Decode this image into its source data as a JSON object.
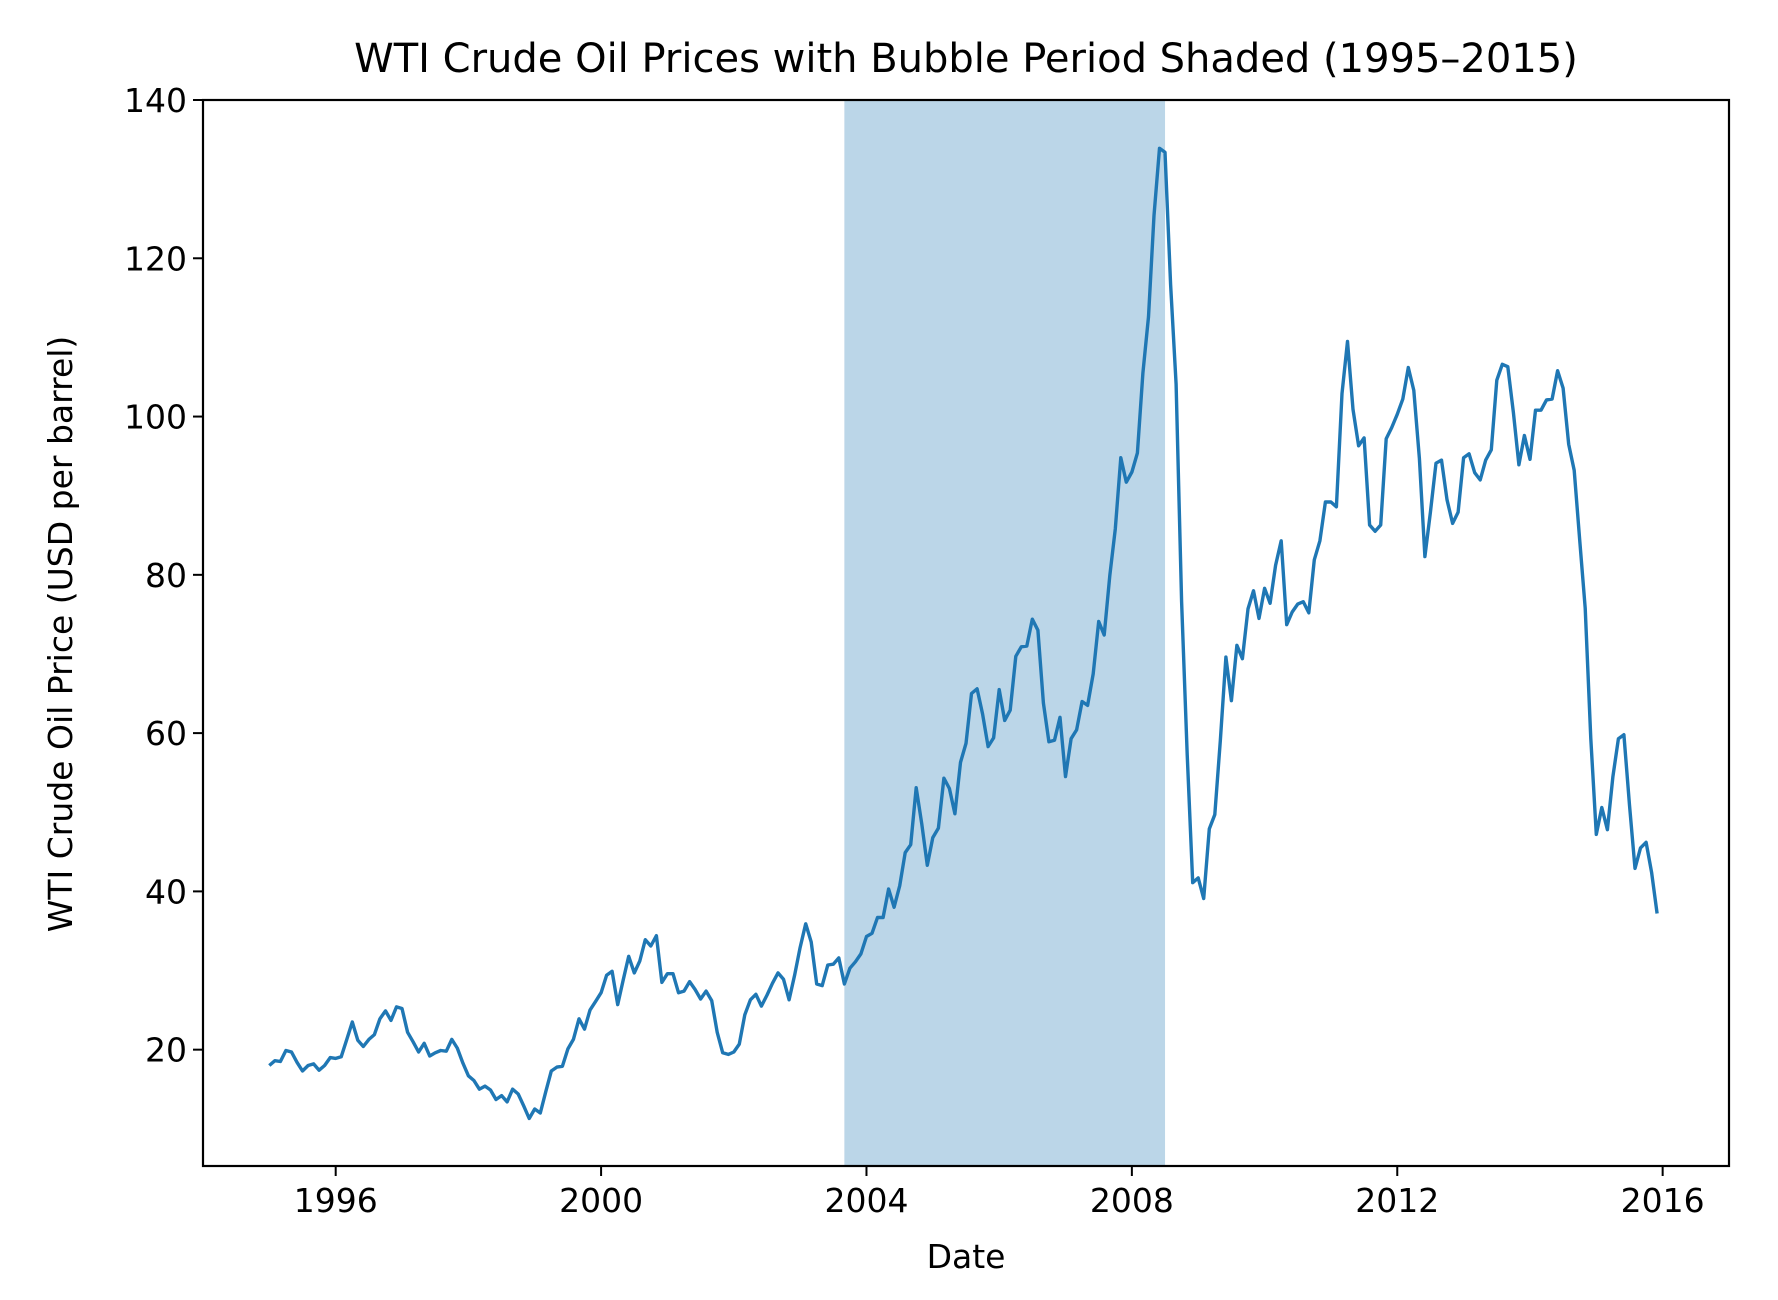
{
  "chart_data": {
    "type": "line",
    "title": "WTI Crude Oil Prices with Bubble Period Shaded (1995–2015)",
    "xlabel": "Date",
    "ylabel": "WTI Crude Oil Price (USD per barrel)",
    "xlim": [
      "1994-01",
      "2017-01"
    ],
    "ylim": [
      5.3,
      140
    ],
    "x_ticks": [
      "1996",
      "2000",
      "2004",
      "2008",
      "2012",
      "2016"
    ],
    "y_ticks": [
      20,
      40,
      60,
      80,
      100,
      120,
      140
    ],
    "grid": false,
    "line_color": "#1f77b4",
    "shaded_span": {
      "start": "2003-09",
      "end": "2008-07",
      "color": "#1f77b4",
      "opacity": 0.3
    },
    "monthly": [
      {
        "year": 1995,
        "values": [
          18.0,
          18.6,
          18.5,
          19.9,
          19.7,
          18.4,
          17.3,
          18.0,
          18.2,
          17.4,
          18.0,
          19.0
        ]
      },
      {
        "year": 1996,
        "values": [
          18.9,
          19.1,
          21.3,
          23.5,
          21.2,
          20.4,
          21.3,
          21.9,
          23.9,
          24.9,
          23.7,
          25.4
        ]
      },
      {
        "year": 1997,
        "values": [
          25.2,
          22.2,
          21.0,
          19.7,
          20.8,
          19.2,
          19.6,
          19.9,
          19.8,
          21.3,
          20.2,
          18.3
        ]
      },
      {
        "year": 1998,
        "values": [
          16.7,
          16.1,
          15.0,
          15.4,
          14.9,
          13.7,
          14.2,
          13.4,
          15.0,
          14.4,
          12.9,
          11.3
        ]
      },
      {
        "year": 1999,
        "values": [
          12.5,
          12.0,
          14.7,
          17.3,
          17.8,
          17.9,
          20.1,
          21.3,
          23.9,
          22.6,
          25.0,
          26.1
        ]
      },
      {
        "year": 2000,
        "values": [
          27.2,
          29.4,
          29.9,
          25.7,
          28.8,
          31.8,
          29.7,
          31.2,
          33.9,
          33.1,
          34.4,
          28.5
        ]
      },
      {
        "year": 2001,
        "values": [
          29.6,
          29.6,
          27.2,
          27.4,
          28.6,
          27.6,
          26.4,
          27.4,
          26.2,
          22.2,
          19.6,
          19.4
        ]
      },
      {
        "year": 2002,
        "values": [
          19.7,
          20.7,
          24.4,
          26.3,
          27.0,
          25.5,
          26.9,
          28.4,
          29.7,
          28.9,
          26.3,
          29.4
        ]
      },
      {
        "year": 2003,
        "values": [
          32.9,
          35.9,
          33.6,
          28.3,
          28.1,
          30.7,
          30.8,
          31.6,
          28.3,
          30.3,
          31.1,
          32.1
        ]
      },
      {
        "year": 2004,
        "values": [
          34.3,
          34.7,
          36.7,
          36.7,
          40.3,
          38.0,
          40.7,
          44.9,
          45.9,
          53.1,
          48.5,
          43.3
        ]
      },
      {
        "year": 2005,
        "values": [
          46.8,
          48.0,
          54.3,
          53.0,
          49.8,
          56.3,
          58.7,
          65.0,
          65.6,
          62.4,
          58.3,
          59.4
        ]
      },
      {
        "year": 2006,
        "values": [
          65.5,
          61.6,
          62.9,
          69.7,
          70.9,
          71.0,
          74.4,
          73.0,
          63.8,
          58.9,
          59.1,
          62.0
        ]
      },
      {
        "year": 2007,
        "values": [
          54.5,
          59.3,
          60.4,
          64.0,
          63.5,
          67.5,
          74.1,
          72.4,
          79.9,
          85.8,
          94.8,
          91.7
        ]
      },
      {
        "year": 2008,
        "values": [
          93.0,
          95.4,
          105.5,
          112.6,
          125.4,
          133.9,
          133.4,
          116.7,
          104.1,
          76.6,
          57.3,
          41.1
        ]
      },
      {
        "year": 2009,
        "values": [
          41.7,
          39.1,
          47.9,
          49.7,
          59.0,
          69.6,
          64.1,
          71.1,
          69.4,
          75.7,
          78.0,
          74.5
        ]
      },
      {
        "year": 2010,
        "values": [
          78.3,
          76.4,
          81.2,
          84.3,
          73.7,
          75.3,
          76.3,
          76.6,
          75.2,
          81.9,
          84.3,
          89.2
        ]
      },
      {
        "year": 2011,
        "values": [
          89.2,
          88.6,
          102.9,
          109.5,
          100.9,
          96.3,
          97.3,
          86.3,
          85.5,
          86.3,
          97.2,
          98.6
        ]
      },
      {
        "year": 2012,
        "values": [
          100.3,
          102.2,
          106.2,
          103.3,
          94.7,
          82.3,
          87.9,
          94.1,
          94.5,
          89.5,
          86.5,
          87.9
        ]
      },
      {
        "year": 2013,
        "values": [
          94.8,
          95.3,
          92.9,
          92.0,
          94.5,
          95.8,
          104.6,
          106.6,
          106.3,
          100.5,
          93.9,
          97.6
        ]
      },
      {
        "year": 2014,
        "values": [
          94.6,
          100.8,
          100.8,
          102.1,
          102.2,
          105.8,
          103.6,
          96.5,
          93.2,
          84.4,
          75.8,
          59.3
        ]
      },
      {
        "year": 2015,
        "values": [
          47.2,
          50.6,
          47.8,
          54.5,
          59.3,
          59.8,
          50.9,
          42.9,
          45.5,
          46.2,
          42.4,
          37.2
        ]
      }
    ]
  }
}
